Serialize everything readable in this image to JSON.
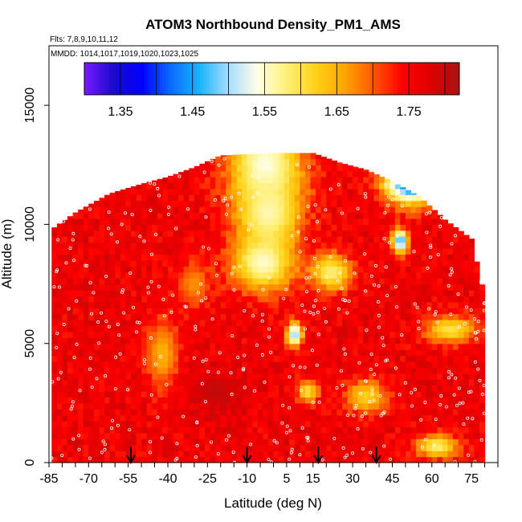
{
  "chart_data": {
    "type": "heatmap",
    "title": "ATOM3 Northbound Density_PM1_AMS",
    "flights_label": "Flts: 7,8,9,10,11,12",
    "dates_label": "MMDD: 1014,1017,1019,1020,1023,1025",
    "xlabel": "Latitude (deg N)",
    "ylabel": "Altitude (m)",
    "xlim": [
      -85,
      85
    ],
    "ylim": [
      0,
      17500
    ],
    "x_ticks": [
      -85,
      -70,
      -55,
      -40,
      -25,
      -10,
      5,
      15,
      30,
      45,
      60,
      75
    ],
    "x_tick_labels": [
      "-85",
      "-70",
      "-55",
      "-40",
      "-25",
      "-10",
      "5",
      "15",
      "30",
      "45",
      "60",
      "75"
    ],
    "y_ticks": [
      0,
      5000,
      10000,
      15000
    ],
    "y_tick_labels": [
      "0",
      "5000",
      "10000",
      "15000"
    ],
    "colorbar": {
      "range": [
        1.3,
        1.82
      ],
      "ticks": [
        1.35,
        1.45,
        1.55,
        1.65,
        1.75
      ],
      "tick_labels": [
        "1.35",
        "1.45",
        "1.55",
        "1.65",
        "1.75"
      ],
      "colors": [
        "#7a1aff",
        "#1a0acc",
        "#0000ff",
        "#0a6cff",
        "#1ab4ff",
        "#a8dcff",
        "#ffffe6",
        "#fff07a",
        "#ffd21a",
        "#ffa500",
        "#ff5a00",
        "#ff0000",
        "#e00000",
        "#a51414"
      ]
    },
    "profile_arrows_lat": [
      -54,
      -10,
      17,
      39
    ],
    "field": {
      "background": 1.76,
      "altitude_extent_m": [
        [
          -84,
          0,
          9800
        ],
        [
          -75,
          0,
          10500
        ],
        [
          -62,
          0,
          11300
        ],
        [
          -50,
          0,
          11700
        ],
        [
          -40,
          0,
          12000
        ],
        [
          -30,
          0,
          12400
        ],
        [
          -20,
          0,
          12900
        ],
        [
          0,
          0,
          13000
        ],
        [
          15,
          0,
          13000
        ],
        [
          25,
          0,
          12600
        ],
        [
          35,
          0,
          12300
        ],
        [
          45,
          0,
          11800
        ],
        [
          55,
          0,
          11200
        ],
        [
          65,
          0,
          10200
        ],
        [
          75,
          0,
          9400
        ],
        [
          80,
          0,
          7000
        ]
      ],
      "features": [
        {
          "lat": -3,
          "alt": 12500,
          "width_deg": 14,
          "depth_m": 1800,
          "value": 1.54
        },
        {
          "lat": -2,
          "alt": 10500,
          "width_deg": 12,
          "depth_m": 1500,
          "value": 1.56
        },
        {
          "lat": -4,
          "alt": 8400,
          "width_deg": 12,
          "depth_m": 1200,
          "value": 1.55
        },
        {
          "lat": 52,
          "alt": 11800,
          "width_deg": 10,
          "depth_m": 900,
          "value": 1.4
        },
        {
          "lat": 48,
          "alt": 9300,
          "width_deg": 3,
          "depth_m": 500,
          "value": 1.45
        },
        {
          "lat": 8,
          "alt": 5400,
          "width_deg": 3,
          "depth_m": 500,
          "value": 1.48
        },
        {
          "lat": 22,
          "alt": 8000,
          "width_deg": 8,
          "depth_m": 800,
          "value": 1.58
        },
        {
          "lat": -42,
          "alt": 4600,
          "width_deg": 6,
          "depth_m": 1500,
          "value": 1.65
        },
        {
          "lat": -30,
          "alt": 7500,
          "width_deg": 6,
          "depth_m": 1000,
          "value": 1.67
        },
        {
          "lat": -22,
          "alt": 3000,
          "width_deg": 10,
          "depth_m": 900,
          "value": 1.8
        },
        {
          "lat": 35,
          "alt": 2800,
          "width_deg": 8,
          "depth_m": 700,
          "value": 1.62
        },
        {
          "lat": 67,
          "alt": 5600,
          "width_deg": 10,
          "depth_m": 600,
          "value": 1.6
        },
        {
          "lat": 62,
          "alt": 700,
          "width_deg": 8,
          "depth_m": 500,
          "value": 1.58
        },
        {
          "lat": 13,
          "alt": 3000,
          "width_deg": 4,
          "depth_m": 500,
          "value": 1.6
        }
      ]
    }
  }
}
